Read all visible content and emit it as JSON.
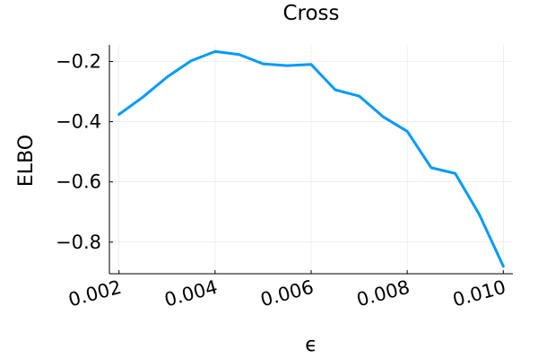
{
  "chart_data": {
    "type": "line",
    "title": "Cross",
    "xlabel": "ϵ",
    "ylabel": "ELBO",
    "xlim": [
      0.0018,
      0.0102
    ],
    "ylim": [
      -0.905,
      -0.145
    ],
    "grid": true,
    "legend": "none",
    "x_ticks": [
      {
        "value": 0.002,
        "label": "0.002"
      },
      {
        "value": 0.004,
        "label": "0.004"
      },
      {
        "value": 0.006,
        "label": "0.006"
      },
      {
        "value": 0.008,
        "label": "0.008"
      },
      {
        "value": 0.01,
        "label": "0.010"
      }
    ],
    "y_ticks": [
      {
        "value": -0.2,
        "label": "−0.2"
      },
      {
        "value": -0.4,
        "label": "−0.4"
      },
      {
        "value": -0.6,
        "label": "−0.6"
      },
      {
        "value": -0.8,
        "label": "−0.8"
      }
    ],
    "series": [
      {
        "color": "#009af9",
        "x": [
          0.002,
          0.0025,
          0.003,
          0.0035,
          0.004,
          0.0045,
          0.005,
          0.0055,
          0.006,
          0.0065,
          0.007,
          0.0075,
          0.008,
          0.0085,
          0.009,
          0.0095,
          0.01
        ],
        "y": [
          -0.376,
          -0.318,
          -0.252,
          -0.198,
          -0.167,
          -0.177,
          -0.208,
          -0.214,
          -0.21,
          -0.294,
          -0.315,
          -0.384,
          -0.432,
          -0.553,
          -0.572,
          -0.708,
          -0.88
        ]
      }
    ]
  }
}
